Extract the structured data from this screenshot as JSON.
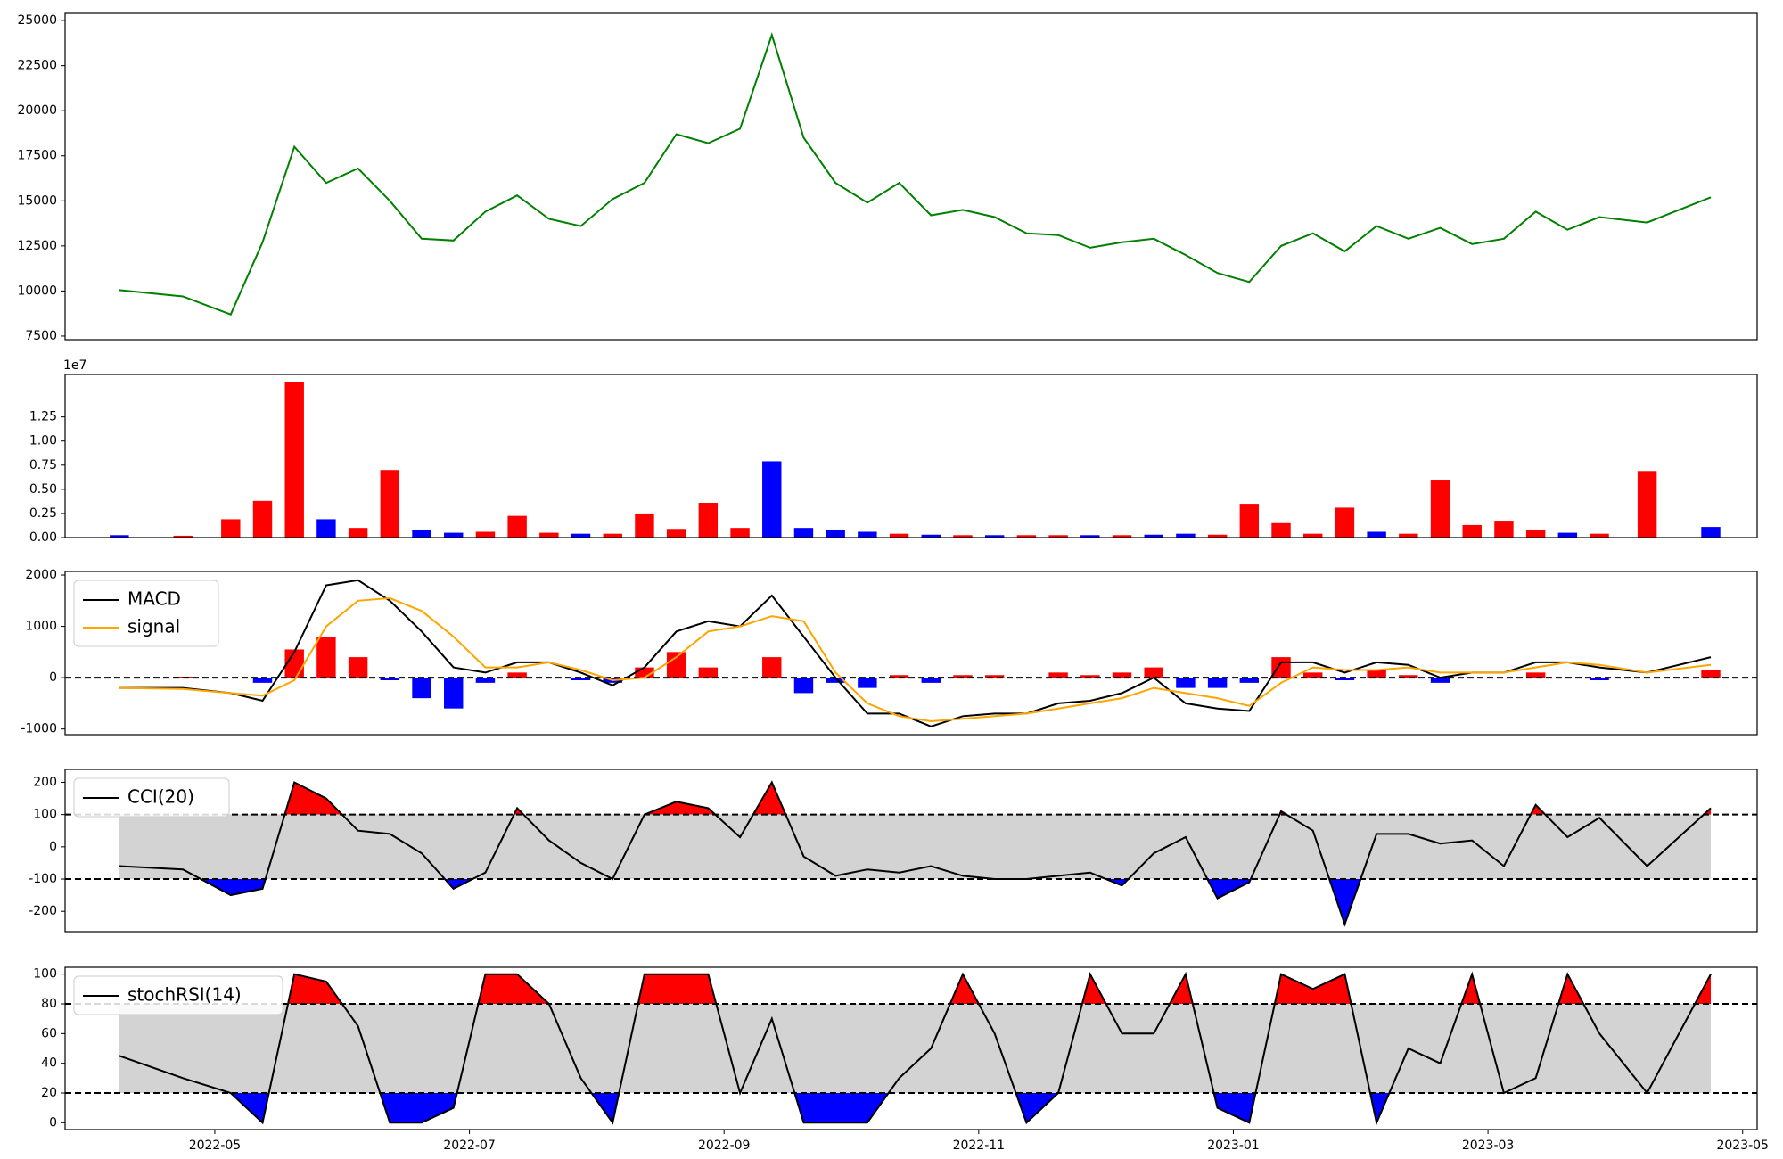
{
  "chart_data": [
    {
      "type": "line",
      "x": [
        "2022-04",
        "2022-04",
        "2022-05",
        "2022-05",
        "2022-05",
        "2022-05",
        "2022-06",
        "2022-06",
        "2022-06",
        "2022-06",
        "2022-07",
        "2022-07",
        "2022-07",
        "2022-07",
        "2022-08",
        "2022-08",
        "2022-08",
        "2022-08",
        "2022-09",
        "2022-09",
        "2022-09",
        "2022-09",
        "2022-10",
        "2022-10",
        "2022-10",
        "2022-10",
        "2022-11",
        "2022-11",
        "2022-11",
        "2022-11",
        "2022-12",
        "2022-12",
        "2022-12",
        "2022-12",
        "2023-01",
        "2023-01",
        "2023-01",
        "2023-01",
        "2023-02",
        "2023-02",
        "2023-02",
        "2023-02",
        "2023-03",
        "2023-03",
        "2023-03",
        "2023-03",
        "2023-04",
        "2023-04"
      ],
      "series": [
        {
          "color": "#008000",
          "values": [
            10050,
            9700,
            8700,
            12700,
            18000,
            16000,
            16800,
            15000,
            12900,
            12800,
            14400,
            15300,
            14000,
            13600,
            15100,
            16000,
            18700,
            18200,
            19000,
            24200,
            18500,
            16000,
            14900,
            16000,
            14200,
            14500,
            14100,
            13200,
            13100,
            12400,
            12700,
            12900,
            12000,
            11000,
            10500,
            12500,
            13200,
            12200,
            13600,
            12900,
            13500,
            12600,
            12900,
            14400,
            13400,
            14100,
            13800,
            15200
          ]
        }
      ],
      "ylim": [
        7300,
        25400
      ],
      "yticks": [
        7500,
        10000,
        12500,
        15000,
        17500,
        20000,
        22500,
        25000
      ]
    },
    {
      "type": "bar",
      "x": [
        "2022-04",
        "2022-04",
        "2022-05",
        "2022-05",
        "2022-05",
        "2022-05",
        "2022-06",
        "2022-06",
        "2022-06",
        "2022-06",
        "2022-07",
        "2022-07",
        "2022-07",
        "2022-07",
        "2022-08",
        "2022-08",
        "2022-08",
        "2022-08",
        "2022-09",
        "2022-09",
        "2022-09",
        "2022-09",
        "2022-10",
        "2022-10",
        "2022-10",
        "2022-10",
        "2022-11",
        "2022-11",
        "2022-11",
        "2022-11",
        "2022-12",
        "2022-12",
        "2022-12",
        "2022-12",
        "2023-01",
        "2023-01",
        "2023-01",
        "2023-01",
        "2023-02",
        "2023-02",
        "2023-02",
        "2023-02",
        "2023-03",
        "2023-03",
        "2023-03",
        "2023-03",
        "2023-04",
        "2023-04"
      ],
      "values": [
        250000,
        190000,
        1900000,
        3800000,
        16100000,
        1900000,
        1000000,
        7000000,
        750000,
        500000,
        600000,
        2250000,
        500000,
        400000,
        400000,
        2500000,
        900000,
        3600000,
        1000000,
        7900000,
        1000000,
        750000,
        600000,
        400000,
        300000,
        250000,
        250000,
        250000,
        250000,
        250000,
        250000,
        300000,
        400000,
        300000,
        3500000,
        1500000,
        400000,
        3100000,
        600000,
        400000,
        6000000,
        1300000,
        1750000,
        750000,
        500000,
        400000,
        6900000,
        1100000
      ],
      "colors": [
        "blue",
        "red",
        "red",
        "red",
        "red",
        "blue",
        "red",
        "red",
        "blue",
        "blue",
        "red",
        "red",
        "red",
        "blue",
        "red",
        "red",
        "red",
        "red",
        "red",
        "blue",
        "blue",
        "blue",
        "blue",
        "red",
        "blue",
        "red",
        "blue",
        "red",
        "red",
        "blue",
        "red",
        "blue",
        "blue",
        "red",
        "red",
        "red",
        "red",
        "red",
        "blue",
        "red",
        "red",
        "red",
        "red",
        "red",
        "blue",
        "red",
        "red",
        "blue"
      ],
      "ylim": [
        0,
        16900000
      ],
      "yticks": [
        {
          "value": 0,
          "label": "0.00"
        },
        {
          "value": 2500000,
          "label": "0.25"
        },
        {
          "value": 5000000,
          "label": "0.50"
        },
        {
          "value": 7500000,
          "label": "0.75"
        },
        {
          "value": 10000000,
          "label": "1.00"
        },
        {
          "value": 12500000,
          "label": "1.25"
        }
      ],
      "offset_label": "1e7"
    },
    {
      "type": "macd",
      "x": [
        "2022-04",
        "2022-04",
        "2022-05",
        "2022-05",
        "2022-05",
        "2022-05",
        "2022-06",
        "2022-06",
        "2022-06",
        "2022-06",
        "2022-07",
        "2022-07",
        "2022-07",
        "2022-07",
        "2022-08",
        "2022-08",
        "2022-08",
        "2022-08",
        "2022-09",
        "2022-09",
        "2022-09",
        "2022-09",
        "2022-10",
        "2022-10",
        "2022-10",
        "2022-10",
        "2022-11",
        "2022-11",
        "2022-11",
        "2022-11",
        "2022-12",
        "2022-12",
        "2022-12",
        "2022-12",
        "2023-01",
        "2023-01",
        "2023-01",
        "2023-01",
        "2023-02",
        "2023-02",
        "2023-02",
        "2023-02",
        "2023-03",
        "2023-03",
        "2023-03",
        "2023-03",
        "2023-04",
        "2023-04"
      ],
      "series": [
        {
          "name": "MACD",
          "color": "#000000",
          "values": [
            -200,
            -200,
            -300,
            -450,
            500,
            1800,
            1900,
            1500,
            900,
            200,
            100,
            300,
            300,
            100,
            -150,
            200,
            900,
            1100,
            1000,
            1600,
            800,
            0,
            -700,
            -700,
            -950,
            -750,
            -700,
            -700,
            -500,
            -450,
            -300,
            0,
            -500,
            -600,
            -650,
            300,
            300,
            100,
            300,
            250,
            0,
            100,
            100,
            300,
            300,
            200,
            100,
            400
          ]
        },
        {
          "name": "signal",
          "color": "#ffa500",
          "values": [
            -200,
            -220,
            -300,
            -350,
            -50,
            1000,
            1500,
            1550,
            1300,
            800,
            200,
            200,
            300,
            150,
            -50,
            0,
            400,
            900,
            1000,
            1200,
            1100,
            100,
            -500,
            -750,
            -850,
            -800,
            -750,
            -700,
            -600,
            -500,
            -400,
            -200,
            -300,
            -400,
            -550,
            -100,
            200,
            150,
            150,
            200,
            100,
            100,
            100,
            200,
            300,
            250,
            100,
            250
          ]
        }
      ],
      "histogram": {
        "values": [
          0,
          20,
          0,
          -100,
          550,
          800,
          400,
          -50,
          -400,
          -600,
          -100,
          100,
          0,
          -50,
          -100,
          200,
          500,
          200,
          0,
          400,
          -300,
          -100,
          -200,
          50,
          -100,
          50,
          50,
          0,
          100,
          50,
          100,
          200,
          -200,
          -200,
          -100,
          400,
          100,
          -50,
          150,
          50,
          -100,
          0,
          0,
          100,
          0,
          -50,
          0,
          150
        ],
        "up_color": "red",
        "down_color": "blue"
      },
      "hlines": [
        0
      ],
      "ylim": [
        -1110,
        2070
      ],
      "yticks": [
        -1000,
        0,
        1000,
        2000
      ],
      "legend": "upper left"
    },
    {
      "type": "oscillator",
      "x": [
        "2022-04",
        "2022-04",
        "2022-05",
        "2022-05",
        "2022-05",
        "2022-05",
        "2022-06",
        "2022-06",
        "2022-06",
        "2022-06",
        "2022-07",
        "2022-07",
        "2022-07",
        "2022-07",
        "2022-08",
        "2022-08",
        "2022-08",
        "2022-08",
        "2022-09",
        "2022-09",
        "2022-09",
        "2022-09",
        "2022-10",
        "2022-10",
        "2022-10",
        "2022-10",
        "2022-11",
        "2022-11",
        "2022-11",
        "2022-11",
        "2022-12",
        "2022-12",
        "2022-12",
        "2022-12",
        "2023-01",
        "2023-01",
        "2023-01",
        "2023-01",
        "2023-02",
        "2023-02",
        "2023-02",
        "2023-02",
        "2023-03",
        "2023-03",
        "2023-03",
        "2023-03",
        "2023-04",
        "2023-04"
      ],
      "series": [
        {
          "name": "CCI(20)",
          "color": "#000000",
          "values": [
            -60,
            -70,
            -150,
            -130,
            200,
            150,
            50,
            40,
            -20,
            -130,
            -80,
            120,
            20,
            -50,
            -100,
            100,
            140,
            120,
            30,
            200,
            -30,
            -90,
            -70,
            -80,
            -60,
            -90,
            -100,
            -100,
            -90,
            -80,
            -120,
            -20,
            30,
            -160,
            -110,
            110,
            50,
            -240,
            40,
            40,
            10,
            20,
            -60,
            130,
            30,
            90,
            -60,
            120
          ]
        }
      ],
      "hlines": [
        -100,
        100
      ],
      "band_color": "lightgray",
      "up_color": "red",
      "down_color": "blue",
      "ylim": [
        -263,
        240
      ],
      "yticks": [
        -200,
        -100,
        0,
        100,
        200
      ],
      "legend": "upper left"
    },
    {
      "type": "oscillator",
      "x": [
        "2022-04",
        "2022-04",
        "2022-05",
        "2022-05",
        "2022-05",
        "2022-05",
        "2022-06",
        "2022-06",
        "2022-06",
        "2022-06",
        "2022-07",
        "2022-07",
        "2022-07",
        "2022-07",
        "2022-08",
        "2022-08",
        "2022-08",
        "2022-08",
        "2022-09",
        "2022-09",
        "2022-09",
        "2022-09",
        "2022-10",
        "2022-10",
        "2022-10",
        "2022-10",
        "2022-11",
        "2022-11",
        "2022-11",
        "2022-11",
        "2022-12",
        "2022-12",
        "2022-12",
        "2022-12",
        "2023-01",
        "2023-01",
        "2023-01",
        "2023-01",
        "2023-02",
        "2023-02",
        "2023-02",
        "2023-02",
        "2023-03",
        "2023-03",
        "2023-03",
        "2023-03",
        "2023-04",
        "2023-04"
      ],
      "series": [
        {
          "name": "stochRSI(14)",
          "color": "#000000",
          "values": [
            45,
            30,
            20,
            0,
            100,
            95,
            65,
            0,
            0,
            10,
            100,
            100,
            80,
            30,
            0,
            100,
            100,
            100,
            20,
            70,
            0,
            0,
            0,
            30,
            50,
            100,
            60,
            0,
            20,
            100,
            60,
            60,
            100,
            10,
            0,
            100,
            90,
            100,
            0,
            50,
            40,
            100,
            20,
            30,
            100,
            60,
            20,
            100
          ]
        }
      ],
      "hlines": [
        20,
        80
      ],
      "band_color": "lightgray",
      "up_color": "red",
      "down_color": "blue",
      "ylim": [
        -4.6,
        104.6
      ],
      "yticks": [
        0,
        20,
        40,
        60,
        80,
        100
      ],
      "legend": "upper left",
      "xticks": [
        "2022-05",
        "2022-07",
        "2022-09",
        "2022-11",
        "2023-01",
        "2023-03",
        "2023-05"
      ]
    }
  ]
}
